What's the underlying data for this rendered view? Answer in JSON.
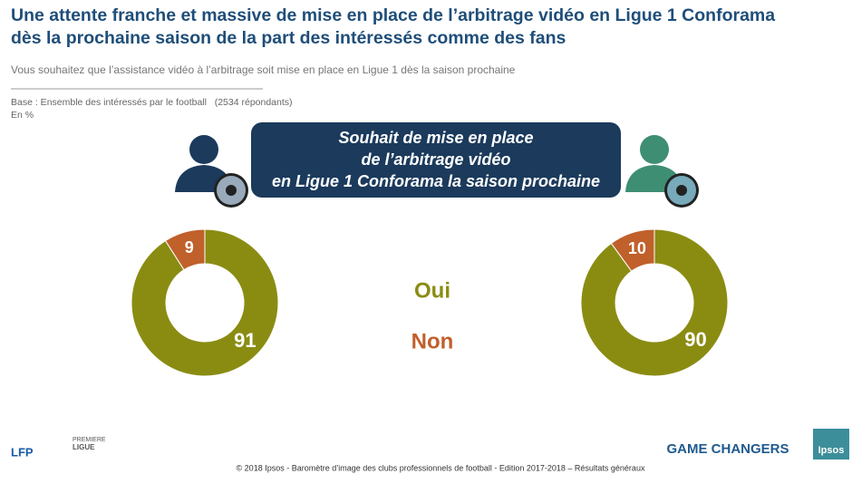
{
  "header": {
    "title_lines": [
      "Une attente franche et massive de mise en place de l’arbitrage vidéo en Ligue 1 Conforama",
      "dès la prochaine saison de la part des intéressés comme des fans"
    ],
    "question": "Vous souhaitez que l’assistance vidéo à l’arbitrage soit mise en place en Ligue 1 dès la saison prochaine",
    "base": "Base : Ensemble des intéressés par le football   (2534 répondants)",
    "unit": "En %"
  },
  "banner": [
    "Souhait de mise en place",
    "de l’arbitrage vidéo",
    "en Ligue 1 Conforama la saison prochaine"
  ],
  "chart_data": {
    "type": "donut",
    "categories": [
      "Oui",
      "Non"
    ],
    "colors": [
      "#8a8c12",
      "#c0602a"
    ],
    "series": [
      {
        "values": [
          91,
          9
        ]
      },
      {
        "values": [
          90,
          10
        ]
      }
    ]
  },
  "footer": {
    "copyright": "© 2018 Ipsos - Baromètre d’image des clubs professionnels de football  - Edition 2017-2018 – Résultats généraux",
    "tagline": "GAME CHANGERS",
    "logos": [
      "LFP",
      "PREMIERE",
      "LIGUE",
      "Ipsos"
    ]
  }
}
